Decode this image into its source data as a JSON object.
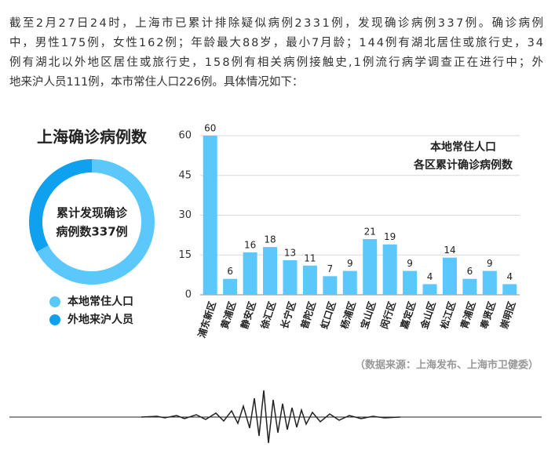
{
  "paragraph": [
    "截至2月27日24时，上海市已累计排除疑似病例2331例，发现确诊病例337例。确诊病例",
    "中，男性175例，女性162例；年龄最大88岁，最小7月龄；144例有湖北居住或旅行史，34",
    "例有湖北以外地区居住或旅行史，158例有相关病例接触史,1例流行病学调查正在进行中；外",
    "地来沪人员111例，本市常住人口226例。具体情况如下："
  ],
  "chart_data": [
    {
      "type": "donut",
      "title": "上海确诊病例数",
      "center_label": [
        "累计发现确诊",
        "病例数337例"
      ],
      "categories": [
        "本地常住人口",
        "外地来沪人员"
      ],
      "values": [
        226,
        111
      ],
      "colors": [
        "#5ac8fa",
        "#0fa0f0"
      ]
    },
    {
      "type": "bar",
      "title": [
        "本地常住人口",
        "各区累计确诊病例数"
      ],
      "categories": [
        "浦东新区",
        "黄浦区",
        "静安区",
        "徐汇区",
        "长宁区",
        "普陀区",
        "虹口区",
        "杨浦区",
        "宝山区",
        "闵行区",
        "嘉定区",
        "金山区",
        "松江区",
        "青浦区",
        "奉贤区",
        "崇明区"
      ],
      "values": [
        60,
        6,
        16,
        18,
        13,
        11,
        7,
        9,
        21,
        19,
        9,
        4,
        14,
        6,
        9,
        4
      ],
      "color": "#5ac8fa",
      "ylim": [
        0,
        60
      ],
      "yticks": [
        0,
        15,
        30,
        45,
        60
      ],
      "grid": true
    }
  ],
  "source": "（数据来源：上海发布、上海市卫健委）"
}
